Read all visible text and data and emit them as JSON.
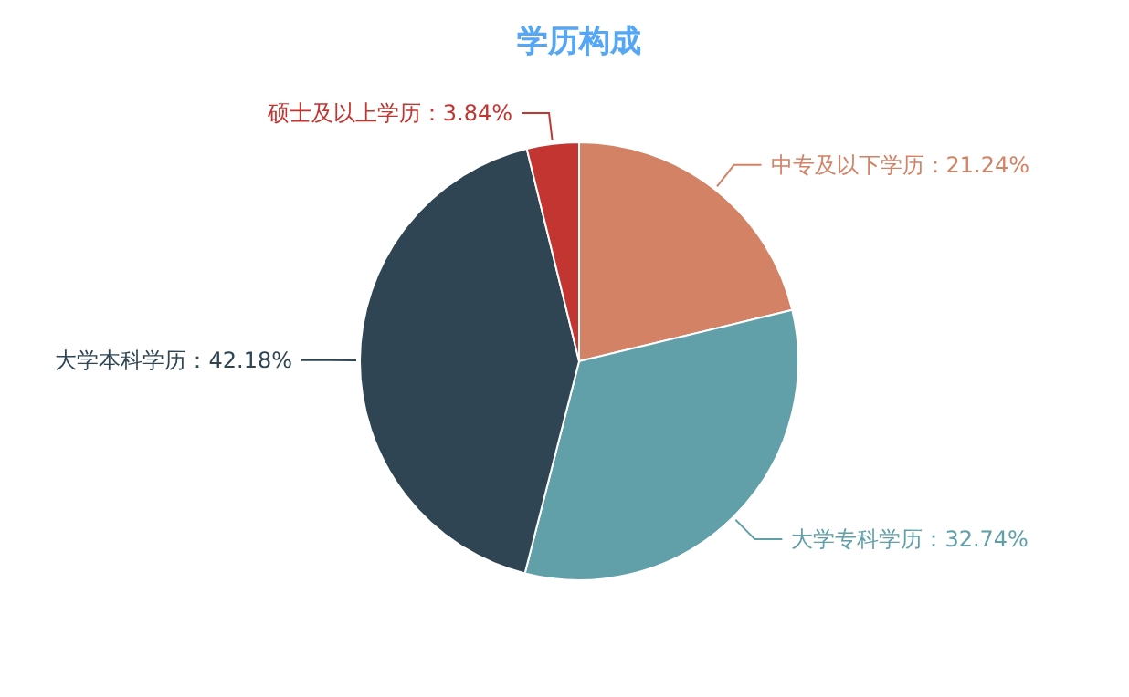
{
  "chart_data": {
    "type": "pie",
    "title": "学历构成",
    "categories": [
      "中专及以下学历",
      "大学专科学历",
      "大学本科学历",
      "硕士及以上学历"
    ],
    "values": [
      21.24,
      32.74,
      42.18,
      3.84
    ],
    "value_labels": [
      "21.24%",
      "32.74%",
      "42.18%",
      "3.84%"
    ],
    "colors": [
      "#d48265",
      "#61a0a8",
      "#2f4554",
      "#c23531"
    ]
  }
}
